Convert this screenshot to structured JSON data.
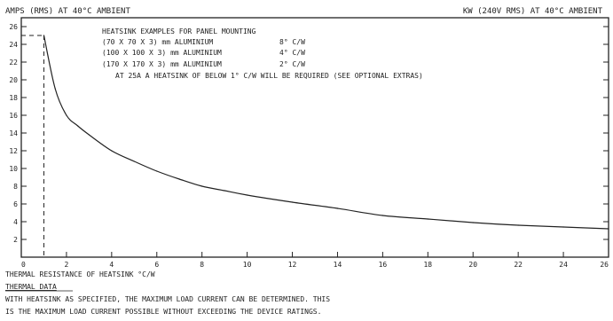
{
  "colors": {
    "ink": "#222222",
    "background": "#ffffff"
  },
  "header": {
    "left_label": "AMPS (RMS) AT 40°C AMBIENT",
    "right_label": "KW (240V RMS) AT 40°C AMBIENT"
  },
  "notes": {
    "title": "HEATSINK EXAMPLES FOR PANEL MOUNTING",
    "rows": [
      {
        "size": "(70 X 70 X 3) mm ALUMINIUM",
        "rating": "8° C/W"
      },
      {
        "size": "(100 X 100 X 3) mm ALUMINIUM",
        "rating": "4° C/W"
      },
      {
        "size": "(170 X 170 X 3) mm ALUMINIUM",
        "rating": "2° C/W"
      }
    ],
    "warning": "AT 25A A HEATSINK OF BELOW 1° C/W WILL BE REQUIRED (SEE OPTIONAL EXTRAS)"
  },
  "footer": {
    "section_title": "THERMAL DATA",
    "line1": "WITH HEATSINK AS SPECIFIED, THE MAXIMUM LOAD CURRENT CAN BE DETERMINED. THIS",
    "line2": "IS THE MAXIMUM LOAD CURRENT POSSIBLE WITHOUT EXCEEDING THE DEVICE RATINGS."
  },
  "chart_data": {
    "type": "line",
    "title": "",
    "xlabel": "THERMAL RESISTANCE OF HEATSINK °C/W",
    "ylabel": "AMPS (RMS) AT 40°C AMBIENT",
    "right_axis_label": "KW (240V RMS) AT 40°C AMBIENT",
    "xlim": [
      0,
      26
    ],
    "ylim": [
      0,
      27
    ],
    "x_ticks": [
      0,
      2,
      4,
      6,
      8,
      10,
      12,
      14,
      16,
      18,
      20,
      22,
      24,
      26
    ],
    "y_ticks": [
      2,
      4,
      6,
      8,
      10,
      12,
      14,
      16,
      18,
      20,
      22,
      24,
      26
    ],
    "grid": false,
    "reference": {
      "x": 1.0,
      "y": 25,
      "style": "dashed"
    },
    "series": [
      {
        "x": [
          1.0,
          1.5,
          2.0,
          2.5,
          3.0,
          4.0,
          5.0,
          6.0,
          7.0,
          8.0,
          9.0,
          10.0,
          12.0,
          14.0,
          16.0,
          18.0,
          20.0,
          22.0,
          24.0,
          26.0
        ],
        "values": [
          25.0,
          19.0,
          16.0,
          14.8,
          13.8,
          12.0,
          10.8,
          9.7,
          8.8,
          8.0,
          7.5,
          7.0,
          6.2,
          5.5,
          4.7,
          4.3,
          3.9,
          3.6,
          3.4,
          3.2
        ]
      }
    ]
  }
}
